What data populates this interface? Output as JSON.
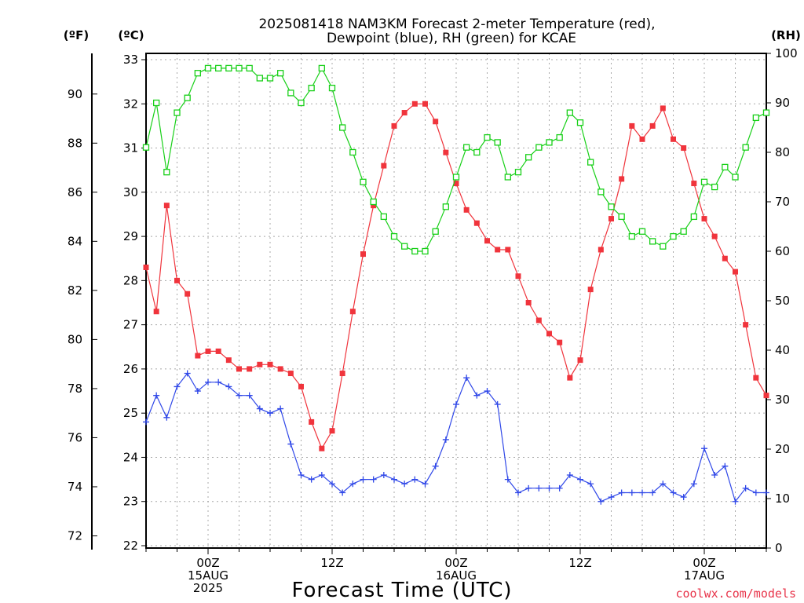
{
  "chart_data": {
    "type": "line",
    "title_line1": "2025081418 NAM3KM Forecast 2-meter Temperature (red),",
    "title_line2": "Dewpoint (blue), RH (green) for KCAE",
    "unit_f": "(ºF)",
    "unit_c": "(ºC)",
    "unit_rh": "(RH)",
    "xlabel": "Forecast Time (UTC)",
    "credit": "coolwx.com/models",
    "x_range_hours": [
      -6,
      54
    ],
    "ylim_c": [
      22,
      33
    ],
    "ylim_rh": [
      0,
      100
    ],
    "ticks_c": [
      "22",
      "23",
      "24",
      "25",
      "26",
      "27",
      "28",
      "29",
      "30",
      "31",
      "32",
      "33"
    ],
    "ticks_f": [
      "72",
      "74",
      "76",
      "78",
      "80",
      "82",
      "84",
      "86",
      "88",
      "90"
    ],
    "ticks_rh": [
      "0",
      "10",
      "20",
      "30",
      "40",
      "50",
      "60",
      "70",
      "80",
      "90",
      "100"
    ],
    "x_ticks": [
      {
        "hour": 0,
        "line1": "00Z",
        "line2": "15AUG",
        "line3": "2025"
      },
      {
        "hour": 12,
        "line1": "12Z",
        "line2": "",
        "line3": ""
      },
      {
        "hour": 24,
        "line1": "00Z",
        "line2": "16AUG",
        "line3": ""
      },
      {
        "hour": 36,
        "line1": "12Z",
        "line2": "",
        "line3": ""
      },
      {
        "hour": 48,
        "line1": "00Z",
        "line2": "17AUG",
        "line3": ""
      }
    ],
    "grid": true,
    "series": [
      {
        "name": "2-meter Temperature",
        "axis": "celsius",
        "color": "#f0343c",
        "marker": "filled-square",
        "hours": [
          -6,
          -5,
          -4,
          -3,
          -2,
          -1,
          0,
          1,
          2,
          3,
          4,
          5,
          6,
          7,
          8,
          9,
          10,
          11,
          12,
          13,
          14,
          15,
          16,
          17,
          18,
          19,
          20,
          21,
          22,
          23,
          24,
          25,
          26,
          27,
          28,
          29,
          30,
          31,
          32,
          33,
          34,
          35,
          36,
          37,
          38,
          39,
          40,
          41,
          42,
          43,
          44,
          45,
          46,
          47,
          48,
          49,
          50,
          51,
          52,
          53,
          54
        ],
        "values": [
          28.3,
          27.3,
          29.7,
          28.0,
          27.7,
          26.3,
          26.4,
          26.4,
          26.2,
          26.0,
          26.0,
          26.1,
          26.1,
          26.0,
          25.9,
          25.6,
          24.8,
          24.2,
          24.6,
          25.9,
          27.3,
          28.6,
          29.7,
          30.6,
          31.5,
          31.8,
          32.0,
          32.0,
          31.6,
          30.9,
          30.2,
          29.6,
          29.3,
          28.9,
          28.7,
          28.7,
          28.1,
          27.5,
          27.1,
          26.8,
          26.6,
          25.8,
          26.2,
          27.8,
          28.7,
          29.4,
          30.3,
          31.5,
          31.2,
          31.5,
          31.9,
          31.2,
          31.0,
          30.2,
          29.4,
          29.0,
          28.5,
          28.2,
          27.0,
          25.8,
          25.4
        ]
      },
      {
        "name": "Dewpoint",
        "axis": "celsius",
        "color": "#3048e8",
        "marker": "plus",
        "hours": [
          -6,
          -5,
          -4,
          -3,
          -2,
          -1,
          0,
          1,
          2,
          3,
          4,
          5,
          6,
          7,
          8,
          9,
          10,
          11,
          12,
          13,
          14,
          15,
          16,
          17,
          18,
          19,
          20,
          21,
          22,
          23,
          24,
          25,
          26,
          27,
          28,
          29,
          30,
          31,
          32,
          33,
          34,
          35,
          36,
          37,
          38,
          39,
          40,
          41,
          42,
          43,
          44,
          45,
          46,
          47,
          48,
          49,
          50,
          51,
          52,
          53,
          54
        ],
        "values": [
          24.8,
          25.4,
          24.9,
          25.6,
          25.9,
          25.5,
          25.7,
          25.7,
          25.6,
          25.4,
          25.4,
          25.1,
          25.0,
          25.1,
          24.3,
          23.6,
          23.5,
          23.6,
          23.4,
          23.2,
          23.4,
          23.5,
          23.5,
          23.6,
          23.5,
          23.4,
          23.5,
          23.4,
          23.8,
          24.4,
          25.2,
          25.8,
          25.4,
          25.5,
          25.2,
          23.5,
          23.2,
          23.3,
          23.3,
          23.3,
          23.3,
          23.6,
          23.5,
          23.4,
          23.0,
          23.1,
          23.2,
          23.2,
          23.2,
          23.2,
          23.4,
          23.2,
          23.1,
          23.4,
          24.2,
          23.6,
          23.8,
          23.0,
          23.3,
          23.2,
          23.2
        ]
      },
      {
        "name": "RH",
        "axis": "rh",
        "color": "#18d018",
        "marker": "open-square",
        "hours": [
          -6,
          -5,
          -4,
          -3,
          -2,
          -1,
          0,
          1,
          2,
          3,
          4,
          5,
          6,
          7,
          8,
          9,
          10,
          11,
          12,
          13,
          14,
          15,
          16,
          17,
          18,
          19,
          20,
          21,
          22,
          23,
          24,
          25,
          26,
          27,
          28,
          29,
          30,
          31,
          32,
          33,
          34,
          35,
          36,
          37,
          38,
          39,
          40,
          41,
          42,
          43,
          44,
          45,
          46,
          47,
          48,
          49,
          50,
          51,
          52,
          53,
          54
        ],
        "values": [
          81,
          90,
          76,
          88,
          91,
          96,
          97,
          97,
          97,
          97,
          97,
          95,
          95,
          96,
          92,
          90,
          93,
          97,
          93,
          85,
          80,
          74,
          70,
          67,
          63,
          61,
          60,
          60,
          64,
          69,
          75,
          81,
          80,
          83,
          82,
          75,
          76,
          79,
          81,
          82,
          83,
          88,
          86,
          78,
          72,
          69,
          67,
          63,
          64,
          62,
          61,
          63,
          64,
          67,
          74,
          73,
          77,
          75,
          81,
          87,
          88
        ]
      }
    ]
  }
}
